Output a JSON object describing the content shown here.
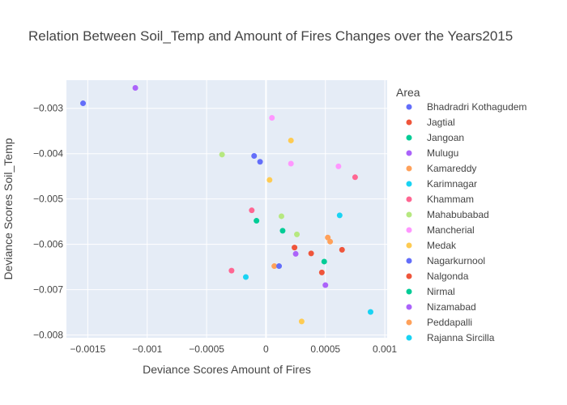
{
  "chart_data": {
    "type": "scatter",
    "title": "Relation Between Soil_Temp and Amount of Fires Changes over the Years2015",
    "xlabel": "Deviance Scores Amount of Fires",
    "ylabel": "Deviance Scores Soil_Temp",
    "xlim": [
      -0.00168,
      0.00102
    ],
    "ylim": [
      -0.00806,
      -0.00238
    ],
    "xticks": [
      {
        "value": -0.0015,
        "label": "−0.0015"
      },
      {
        "value": -0.001,
        "label": "−0.001"
      },
      {
        "value": -0.0005,
        "label": "−0.0005"
      },
      {
        "value": 0,
        "label": "0"
      },
      {
        "value": 0.0005,
        "label": "0.0005"
      },
      {
        "value": 0.001,
        "label": "0.001"
      }
    ],
    "yticks": [
      {
        "value": -0.003,
        "label": "−0.003"
      },
      {
        "value": -0.004,
        "label": "−0.004"
      },
      {
        "value": -0.005,
        "label": "−0.005"
      },
      {
        "value": -0.006,
        "label": "−0.006"
      },
      {
        "value": -0.007,
        "label": "−0.007"
      },
      {
        "value": -0.008,
        "label": "−0.008"
      }
    ],
    "grid": true,
    "legend_title": "Area",
    "legend_position": "right",
    "series": [
      {
        "name": "Bhadradri Kothagudem",
        "color": "#636efa",
        "points": [
          [
            -0.00154,
            -0.00289
          ]
        ]
      },
      {
        "name": "Jagtial",
        "color": "#ef553b",
        "points": [
          [
            0.00064,
            -0.00612
          ]
        ]
      },
      {
        "name": "Jangoan",
        "color": "#00cc96",
        "points": [
          [
            0.00049,
            -0.00638
          ]
        ]
      },
      {
        "name": "Mulugu",
        "color": "#ab63fa",
        "points": [
          [
            0.00025,
            -0.00621
          ]
        ]
      },
      {
        "name": "Kamareddy",
        "color": "#ffa15a",
        "points": [
          [
            7e-05,
            -0.00648
          ]
        ]
      },
      {
        "name": "Karimnagar",
        "color": "#19d3f3",
        "points": [
          [
            0.00062,
            -0.00536
          ]
        ]
      },
      {
        "name": "Khammam",
        "color": "#ff6692",
        "points": [
          [
            -0.00029,
            -0.00658
          ]
        ]
      },
      {
        "name": "Mahabubabad",
        "color": "#b6e880",
        "points": [
          [
            0.00013,
            -0.00538
          ]
        ]
      },
      {
        "name": "Mancherial",
        "color": "#ff97ff",
        "points": [
          [
            0.00061,
            -0.00428
          ]
        ]
      },
      {
        "name": "Medak",
        "color": "#fecb52",
        "points": [
          [
            0.00021,
            -0.00371
          ]
        ]
      },
      {
        "name": "Nagarkurnool",
        "color": "#636efa",
        "points": [
          [
            -0.0001,
            -0.00405
          ]
        ]
      },
      {
        "name": "Nalgonda",
        "color": "#ef553b",
        "points": [
          [
            0.00038,
            -0.0062
          ]
        ]
      },
      {
        "name": "Nirmal",
        "color": "#00cc96",
        "points": [
          [
            0.00014,
            -0.0057
          ]
        ]
      },
      {
        "name": "Nizamabad",
        "color": "#ab63fa",
        "points": [
          [
            -0.0011,
            -0.00255
          ]
        ]
      },
      {
        "name": "Peddapalli",
        "color": "#ffa15a",
        "points": [
          [
            0.00052,
            -0.00585
          ]
        ]
      },
      {
        "name": "Rajanna Sircilla",
        "color": "#19d3f3",
        "points": [
          [
            0.00088,
            -0.00749
          ]
        ]
      },
      {
        "name": "",
        "color": "#ff6692",
        "points": [
          [
            0.00075,
            -0.00452
          ],
          [
            -0.00012,
            -0.00525
          ]
        ]
      },
      {
        "name": "",
        "color": "#b6e880",
        "points": [
          [
            -0.00037,
            -0.00402
          ],
          [
            0.00026,
            -0.00578
          ]
        ]
      },
      {
        "name": "",
        "color": "#ff97ff",
        "points": [
          [
            5e-05,
            -0.00321
          ],
          [
            0.00021,
            -0.00422
          ]
        ]
      },
      {
        "name": "",
        "color": "#fecb52",
        "points": [
          [
            3e-05,
            -0.00458
          ],
          [
            0.0003,
            -0.0077
          ]
        ]
      },
      {
        "name": "",
        "color": "#636efa",
        "points": [
          [
            -5e-05,
            -0.00418
          ],
          [
            0.00011,
            -0.00648
          ]
        ]
      },
      {
        "name": "",
        "color": "#ef553b",
        "points": [
          [
            0.00024,
            -0.00607
          ],
          [
            0.00047,
            -0.00662
          ]
        ]
      },
      {
        "name": "",
        "color": "#00cc96",
        "points": [
          [
            -8e-05,
            -0.00548
          ]
        ]
      },
      {
        "name": "",
        "color": "#ab63fa",
        "points": [
          [
            0.0005,
            -0.0069
          ]
        ]
      },
      {
        "name": "",
        "color": "#ffa15a",
        "points": [
          [
            0.00054,
            -0.00594
          ]
        ]
      },
      {
        "name": "",
        "color": "#19d3f3",
        "points": [
          [
            -0.00017,
            -0.00672
          ]
        ]
      }
    ]
  }
}
